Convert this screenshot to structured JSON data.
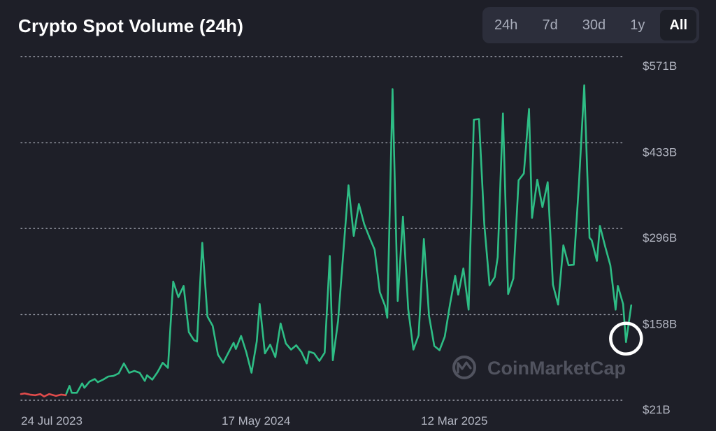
{
  "chart_data": {
    "type": "line",
    "title": "Crypto Spot Volume (24h)",
    "ylabel": "",
    "xlabel": "",
    "y_ticks": [
      "$571B",
      "$433B",
      "$296B",
      "$158B",
      "$21B"
    ],
    "y_tick_values": [
      571,
      433,
      296,
      158,
      21
    ],
    "ylim": [
      21,
      571
    ],
    "x_ticks": [
      "24 Jul 2023",
      "17 May 2024",
      "12 Mar 2025"
    ],
    "x_range": [
      "2023-07-24",
      "2025-10-07"
    ],
    "grid": "horizontal dotted",
    "series": [
      {
        "color_positive": "#2ebd85",
        "color_negative": "#e04b4b",
        "points": [
          [
            "2023-07-24",
            31
          ],
          [
            "2023-07-29",
            32
          ],
          [
            "2023-08-05",
            30
          ],
          [
            "2023-08-12",
            29
          ],
          [
            "2023-08-19",
            31
          ],
          [
            "2023-08-24",
            27
          ],
          [
            "2023-08-31",
            31
          ],
          [
            "2023-09-09",
            28
          ],
          [
            "2023-09-16",
            30
          ],
          [
            "2023-09-22",
            29
          ],
          [
            "2023-09-27",
            44
          ],
          [
            "2023-09-30",
            33
          ],
          [
            "2023-10-07",
            33
          ],
          [
            "2023-10-14",
            48
          ],
          [
            "2023-10-17",
            41
          ],
          [
            "2023-10-24",
            51
          ],
          [
            "2023-10-31",
            55
          ],
          [
            "2023-11-04",
            50
          ],
          [
            "2023-11-11",
            54
          ],
          [
            "2023-11-18",
            59
          ],
          [
            "2023-11-25",
            60
          ],
          [
            "2023-12-02",
            64
          ],
          [
            "2023-12-09",
            80
          ],
          [
            "2023-12-16",
            65
          ],
          [
            "2023-12-23",
            68
          ],
          [
            "2023-12-30",
            65
          ],
          [
            "2024-01-06",
            52
          ],
          [
            "2024-01-09",
            61
          ],
          [
            "2024-01-16",
            54
          ],
          [
            "2024-01-23",
            66
          ],
          [
            "2024-01-30",
            81
          ],
          [
            "2024-02-06",
            73
          ],
          [
            "2024-02-13",
            211
          ],
          [
            "2024-02-20",
            186
          ],
          [
            "2024-02-27",
            204
          ],
          [
            "2024-03-05",
            130
          ],
          [
            "2024-03-12",
            117
          ],
          [
            "2024-03-16",
            115
          ],
          [
            "2024-03-23",
            273
          ],
          [
            "2024-03-30",
            155
          ],
          [
            "2024-04-06",
            140
          ],
          [
            "2024-04-13",
            94
          ],
          [
            "2024-04-20",
            81
          ],
          [
            "2024-04-27",
            97
          ],
          [
            "2024-05-04",
            113
          ],
          [
            "2024-05-07",
            103
          ],
          [
            "2024-05-14",
            124
          ],
          [
            "2024-05-21",
            98
          ],
          [
            "2024-05-28",
            65
          ],
          [
            "2024-06-04",
            115
          ],
          [
            "2024-06-08",
            175
          ],
          [
            "2024-06-15",
            96
          ],
          [
            "2024-06-22",
            110
          ],
          [
            "2024-06-29",
            90
          ],
          [
            "2024-07-06",
            144
          ],
          [
            "2024-07-13",
            112
          ],
          [
            "2024-07-20",
            102
          ],
          [
            "2024-07-27",
            109
          ],
          [
            "2024-08-03",
            98
          ],
          [
            "2024-08-10",
            80
          ],
          [
            "2024-08-13",
            99
          ],
          [
            "2024-08-20",
            96
          ],
          [
            "2024-08-27",
            84
          ],
          [
            "2024-09-03",
            97
          ],
          [
            "2024-09-10",
            252
          ],
          [
            "2024-09-14",
            85
          ],
          [
            "2024-09-21",
            148
          ],
          [
            "2024-10-05",
            365
          ],
          [
            "2024-10-12",
            284
          ],
          [
            "2024-10-19",
            335
          ],
          [
            "2024-10-26",
            303
          ],
          [
            "2024-11-02",
            282
          ],
          [
            "2024-11-09",
            262
          ],
          [
            "2024-11-16",
            194
          ],
          [
            "2024-11-23",
            172
          ],
          [
            "2024-11-26",
            153
          ],
          [
            "2024-12-03",
            519
          ],
          [
            "2024-12-10",
            180
          ],
          [
            "2024-12-17",
            315
          ],
          [
            "2024-12-24",
            167
          ],
          [
            "2024-12-31",
            102
          ],
          [
            "2025-01-07",
            125
          ],
          [
            "2025-01-14",
            279
          ],
          [
            "2025-01-21",
            156
          ],
          [
            "2025-01-28",
            108
          ],
          [
            "2025-02-04",
            101
          ],
          [
            "2025-02-11",
            123
          ],
          [
            "2025-02-18",
            174
          ],
          [
            "2025-02-25",
            220
          ],
          [
            "2025-03-01",
            190
          ],
          [
            "2025-03-08",
            232
          ],
          [
            "2025-03-15",
            166
          ],
          [
            "2025-03-22",
            470
          ],
          [
            "2025-03-29",
            471
          ],
          [
            "2025-04-05",
            303
          ],
          [
            "2025-04-12",
            205
          ],
          [
            "2025-04-19",
            218
          ],
          [
            "2025-04-23",
            250
          ],
          [
            "2025-04-30",
            480
          ],
          [
            "2025-05-07",
            191
          ],
          [
            "2025-05-14",
            216
          ],
          [
            "2025-05-21",
            373
          ],
          [
            "2025-05-28",
            384
          ],
          [
            "2025-06-04",
            487
          ],
          [
            "2025-06-08",
            313
          ],
          [
            "2025-06-15",
            374
          ],
          [
            "2025-06-22",
            330
          ],
          [
            "2025-06-29",
            370
          ],
          [
            "2025-07-06",
            206
          ],
          [
            "2025-07-13",
            174
          ],
          [
            "2025-07-20",
            269
          ],
          [
            "2025-07-27",
            237
          ],
          [
            "2025-08-03",
            238
          ],
          [
            "2025-08-10",
            370
          ],
          [
            "2025-08-17",
            525
          ],
          [
            "2025-08-24",
            281
          ],
          [
            "2025-08-27",
            277
          ],
          [
            "2025-09-03",
            244
          ],
          [
            "2025-09-07",
            300
          ],
          [
            "2025-09-14",
            267
          ],
          [
            "2025-09-21",
            237
          ],
          [
            "2025-09-28",
            166
          ],
          [
            "2025-10-01",
            204
          ],
          [
            "2025-10-08",
            175
          ],
          [
            "2025-10-12",
            114
          ],
          [
            "2025-10-19",
            173
          ]
        ],
        "negative_until": "2023-09-22"
      }
    ],
    "highlight_point": [
      "2025-10-12",
      114
    ]
  },
  "controls": {
    "ranges": [
      "24h",
      "7d",
      "30d",
      "1y",
      "All"
    ],
    "selected": "All"
  },
  "watermark": {
    "text": "CoinMarketCap",
    "icon": "coinmarketcap-logo-icon"
  },
  "colors": {
    "background": "#1e1f28",
    "line_up": "#2ebd85",
    "line_down": "#e04b4b",
    "grid": "#9fa2ad",
    "tab_bg": "#2c2e3b"
  }
}
